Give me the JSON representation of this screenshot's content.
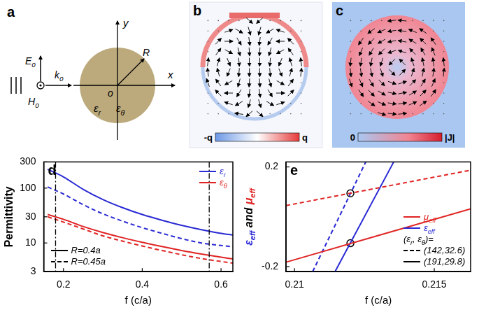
{
  "panels": {
    "a": {
      "label": "a",
      "E": [
        {
          "text": "E",
          "sub": "0"
        }
      ],
      "k": [
        {
          "text": "k",
          "sub": "0"
        }
      ],
      "H": [
        {
          "text": "H",
          "sub": "0"
        }
      ],
      "y_axis": "y",
      "x_axis": "x",
      "origin": "o",
      "radius": "R",
      "materials": [
        [
          {
            "text": "ε",
            "sub": "r"
          }
        ],
        [
          {
            "text": "ε",
            "sub": "θ"
          }
        ]
      ]
    },
    "b": {
      "label": "b",
      "colorbar": [
        "-q",
        "q"
      ]
    },
    "c": {
      "label": "c",
      "colorbar": [
        "0",
        "|J|"
      ]
    }
  },
  "chart_data": [
    {
      "type": "line",
      "label": "d",
      "xlabel": "f (c/a)",
      "ylabel": "Permittivity",
      "log": "y",
      "grid": false,
      "xlim": [
        0.15,
        0.63
      ],
      "xticks": [
        0.2,
        0.4,
        0.6
      ],
      "ylim": [
        3,
        300
      ],
      "yticks": [
        3,
        10,
        30,
        100,
        300
      ],
      "vlines": [
        0.18,
        0.57
      ],
      "legend": "top-right",
      "legend_items": [
        {
          "text": [
            {
              "text": "ε",
              "sub": "r"
            }
          ],
          "color": "#2a2ad4"
        },
        {
          "text": [
            {
              "text": "ε",
              "sub": "θ"
            }
          ],
          "color": "#e02424"
        }
      ],
      "style_items": [
        {
          "text": [
            {
              "text": "R=0.4a"
            }
          ],
          "line_style": "solid"
        },
        {
          "text": [
            {
              "text": "R=0.45a"
            }
          ],
          "line_style": "dashed"
        }
      ],
      "series": [
        {
          "color": "#2a2ad4",
          "line_style": "solid",
          "x": [
            0.16,
            0.2,
            0.25,
            0.3,
            0.35,
            0.4,
            0.45,
            0.5,
            0.55,
            0.6,
            0.63
          ],
          "values": [
            220,
            160,
            95,
            62,
            44,
            33,
            26,
            21,
            17.5,
            15,
            14
          ]
        },
        {
          "color": "#2a2ad4",
          "line_style": "dashed",
          "x": [
            0.16,
            0.2,
            0.25,
            0.3,
            0.35,
            0.4,
            0.45,
            0.5,
            0.55,
            0.6,
            0.63
          ],
          "values": [
            105,
            78,
            50,
            34,
            25,
            19,
            15,
            12,
            10,
            9,
            8.5
          ]
        },
        {
          "color": "#e02424",
          "line_style": "solid",
          "x": [
            0.16,
            0.2,
            0.25,
            0.3,
            0.35,
            0.4,
            0.45,
            0.5,
            0.55,
            0.6,
            0.63
          ],
          "values": [
            33,
            27,
            20,
            15.5,
            12.5,
            10.3,
            8.6,
            7.3,
            6.3,
            5.5,
            5.1
          ]
        },
        {
          "color": "#e02424",
          "line_style": "dashed",
          "x": [
            0.16,
            0.2,
            0.25,
            0.3,
            0.35,
            0.4,
            0.45,
            0.5,
            0.55,
            0.6,
            0.63
          ],
          "values": [
            30,
            24,
            18,
            13.5,
            10.8,
            8.8,
            7.3,
            6.1,
            5.2,
            4.6,
            4.3
          ]
        }
      ]
    },
    {
      "type": "line",
      "label": "e",
      "xlabel": "f (c/a)",
      "ylabel": [
        {
          "text": "ε",
          "sub": "eff",
          "color": "#2a2ad4"
        },
        {
          "text": " and "
        },
        {
          "text": "μ",
          "sub": "eff",
          "color": "#e02424"
        }
      ],
      "grid": false,
      "xlim": [
        0.2097,
        0.2163
      ],
      "xticks": [
        0.21,
        0.215
      ],
      "ylim": [
        -0.22,
        0.22
      ],
      "yticks": [
        -0.2,
        0.2
      ],
      "legend": "bottom-right",
      "legend_items": [
        {
          "text": [
            {
              "text": "μ",
              "sub": "eff"
            }
          ],
          "color": "#e02424"
        },
        {
          "text": [
            {
              "text": "ε",
              "sub": "eff"
            }
          ],
          "color": "#2a2ad4"
        }
      ],
      "style_title": [
        {
          "text": "(ε",
          "sub": "r"
        },
        {
          "text": ", ε",
          "sub": "θ"
        },
        {
          "text": ")="
        }
      ],
      "style_items": [
        {
          "text": [
            {
              "text": "(142,32.6)"
            }
          ],
          "line_style": "dashed"
        },
        {
          "text": [
            {
              "text": "(191,29.8)"
            }
          ],
          "line_style": "solid"
        }
      ],
      "series": [
        {
          "color": "#e02424",
          "line_style": "solid",
          "x": [
            0.2097,
            0.2163
          ],
          "values": [
            -0.182,
            0.032
          ]
        },
        {
          "color": "#e02424",
          "line_style": "dashed",
          "x": [
            0.2097,
            0.2163
          ],
          "values": [
            0.045,
            0.187
          ]
        },
        {
          "color": "#2a2ad4",
          "line_style": "dashed",
          "x": [
            0.21065,
            0.21255
          ],
          "values": [
            -0.22,
            0.22
          ]
        },
        {
          "color": "#2a2ad4",
          "line_style": "solid",
          "x": [
            0.21145,
            0.21355
          ],
          "values": [
            -0.22,
            0.22
          ]
        },
        {
          "type": "scatter",
          "marker": "circle",
          "color": "#000000",
          "x": [
            0.212,
            0.212
          ],
          "values": [
            0.094,
            -0.106
          ]
        }
      ]
    }
  ]
}
